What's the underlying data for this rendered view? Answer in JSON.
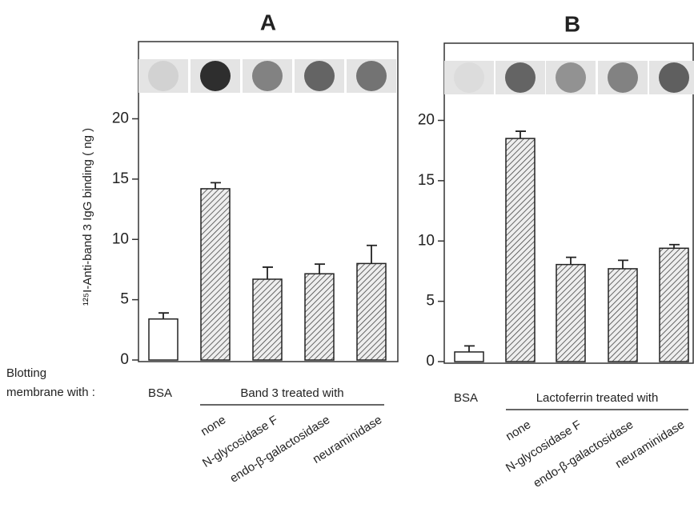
{
  "row_label_lines": [
    "Blotting",
    "membrane with :"
  ],
  "chart_data": [
    {
      "type": "bar",
      "title": "A",
      "y_label": "¹²⁵I-Anti-band 3 IgG binding ( ng )",
      "categories": [
        "BSA",
        "none",
        "N-glycosidase F",
        "endo-β-galactosidase",
        "neuraminidase"
      ],
      "group_label": "Band 3 treated with",
      "values": [
        3.4,
        14.2,
        6.7,
        7.15,
        8.0
      ],
      "errors": [
        0.5,
        0.5,
        1.0,
        0.8,
        1.5
      ],
      "color": "#222222",
      "ylim": [
        0,
        26.4
      ],
      "yticks": [
        0,
        5,
        10,
        15,
        20
      ]
    },
    {
      "type": "bar",
      "title": "B",
      "categories": [
        "BSA",
        "none",
        "N-glycosidase F",
        "endo-β-galactosidase",
        "neuraminidase"
      ],
      "group_label": "Lactoferrin treated with",
      "values": [
        0.8,
        18.5,
        8.05,
        7.7,
        9.4
      ],
      "errors": [
        0.5,
        0.6,
        0.6,
        0.7,
        0.3
      ],
      "color": "#222222",
      "ylim": [
        0,
        26.4
      ],
      "yticks": [
        0,
        5,
        10,
        15,
        20
      ]
    }
  ]
}
